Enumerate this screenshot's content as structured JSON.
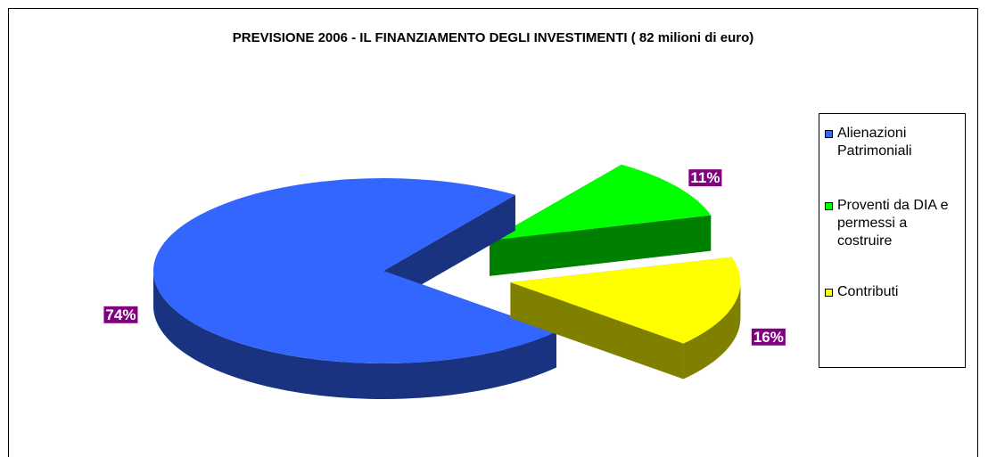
{
  "chart_data": {
    "type": "pie",
    "title": "PREVISIONE 2006 - IL FINANZIAMENTO DEGLI INVESTIMENTI ( 82 milioni di euro)",
    "categories": [
      "Alienazioni Patrimoniali",
      "Proventi da DIA e permessi a costruire",
      "Contributi"
    ],
    "values": [
      74,
      11,
      16
    ],
    "value_labels": [
      "74%",
      "11%",
      "16%"
    ],
    "colors": [
      "#3366ff",
      "#00ff00",
      "#ffff00"
    ],
    "legend": "right"
  }
}
